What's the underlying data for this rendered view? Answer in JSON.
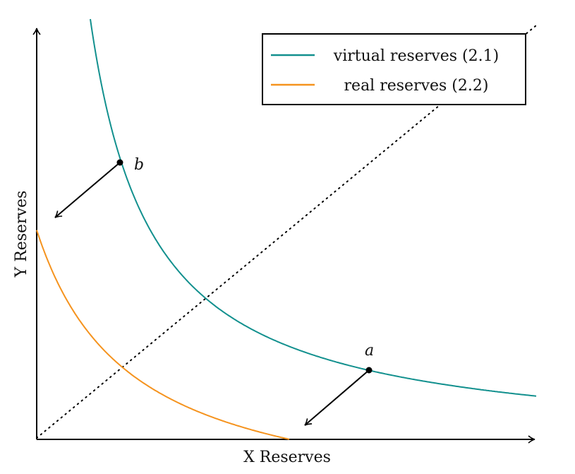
{
  "axes": {
    "x_label": "X Reserves",
    "y_label": "Y Reserves"
  },
  "legend": {
    "items": [
      {
        "label": "virtual reserves (2.1)",
        "color": "#12908e"
      },
      {
        "label": "real reserves (2.2)",
        "color": "#f5931e"
      }
    ]
  },
  "points": [
    {
      "label": "b"
    },
    {
      "label": "a"
    }
  ]
}
